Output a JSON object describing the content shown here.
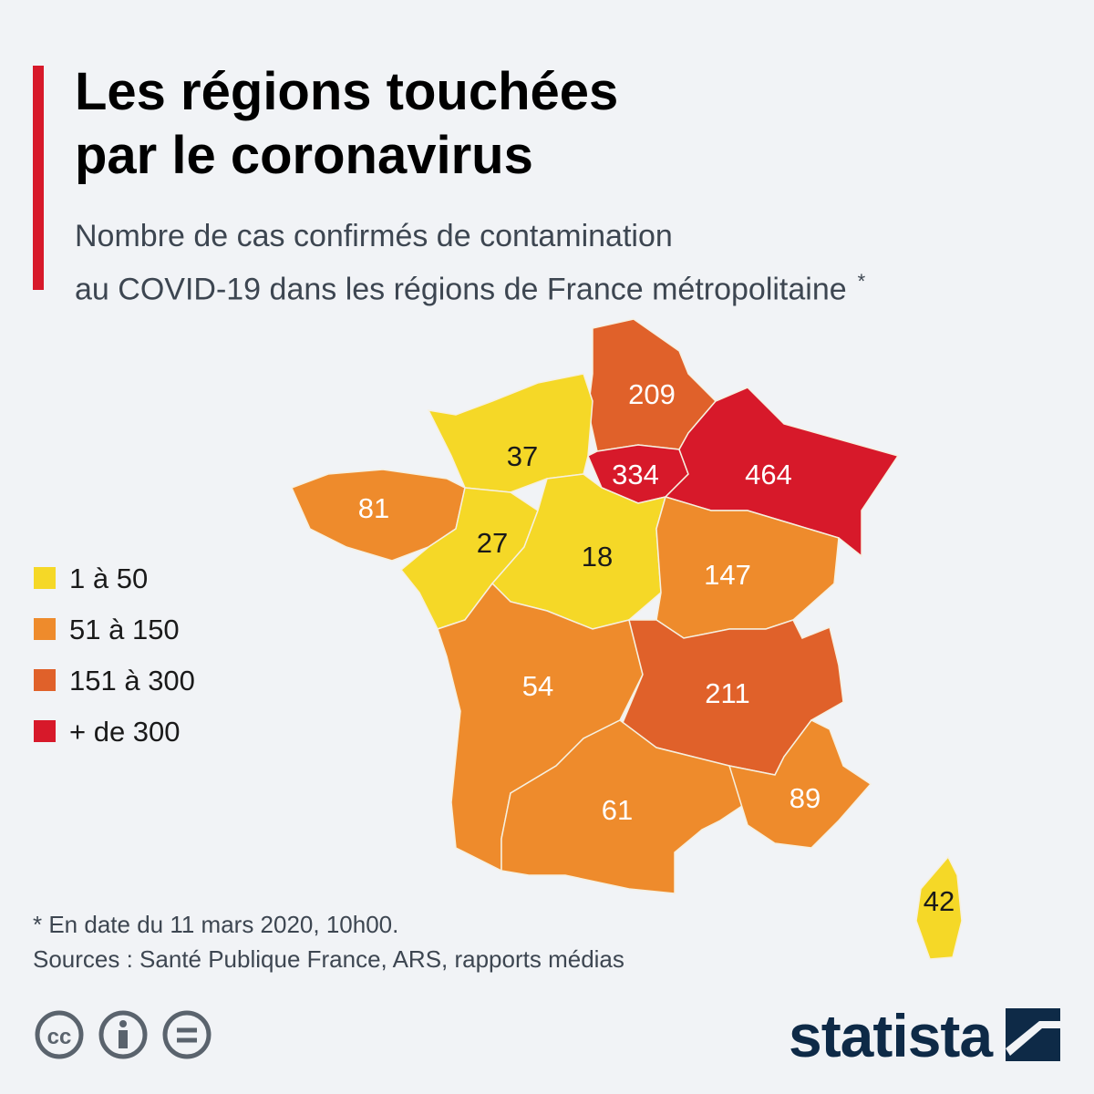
{
  "title": [
    "Les régions touchées",
    "par le coronavirus"
  ],
  "subtitle": [
    "Nombre de cas confirmés de contamination",
    "au COVID-19 dans les régions de France métropolitaine"
  ],
  "subtitle_mark": "*",
  "legend": [
    {
      "label": "1 à 50",
      "color": "#f5d827"
    },
    {
      "label": "51 à 150",
      "color": "#ee8b2c"
    },
    {
      "label": "151 à 300",
      "color": "#e0612a"
    },
    {
      "label": "+ de 300",
      "color": "#d7192a"
    }
  ],
  "regions": [
    {
      "value": 209,
      "color": "#e0612a"
    },
    {
      "value": 334,
      "color": "#d7192a"
    },
    {
      "value": 464,
      "color": "#d7192a"
    },
    {
      "value": 37,
      "color": "#f5d827"
    },
    {
      "value": 81,
      "color": "#ee8b2c"
    },
    {
      "value": 27,
      "color": "#f5d827"
    },
    {
      "value": 18,
      "color": "#f5d827"
    },
    {
      "value": 147,
      "color": "#ee8b2c"
    },
    {
      "value": 54,
      "color": "#ee8b2c"
    },
    {
      "value": 211,
      "color": "#e0612a"
    },
    {
      "value": 61,
      "color": "#ee8b2c"
    },
    {
      "value": 89,
      "color": "#ee8b2c"
    },
    {
      "value": 42,
      "color": "#f5d827"
    }
  ],
  "footnote": "* En date du 11 mars 2020, 10h00.",
  "source": "Sources : Santé Publique France, ARS, rapports médias",
  "brand": "statista"
}
